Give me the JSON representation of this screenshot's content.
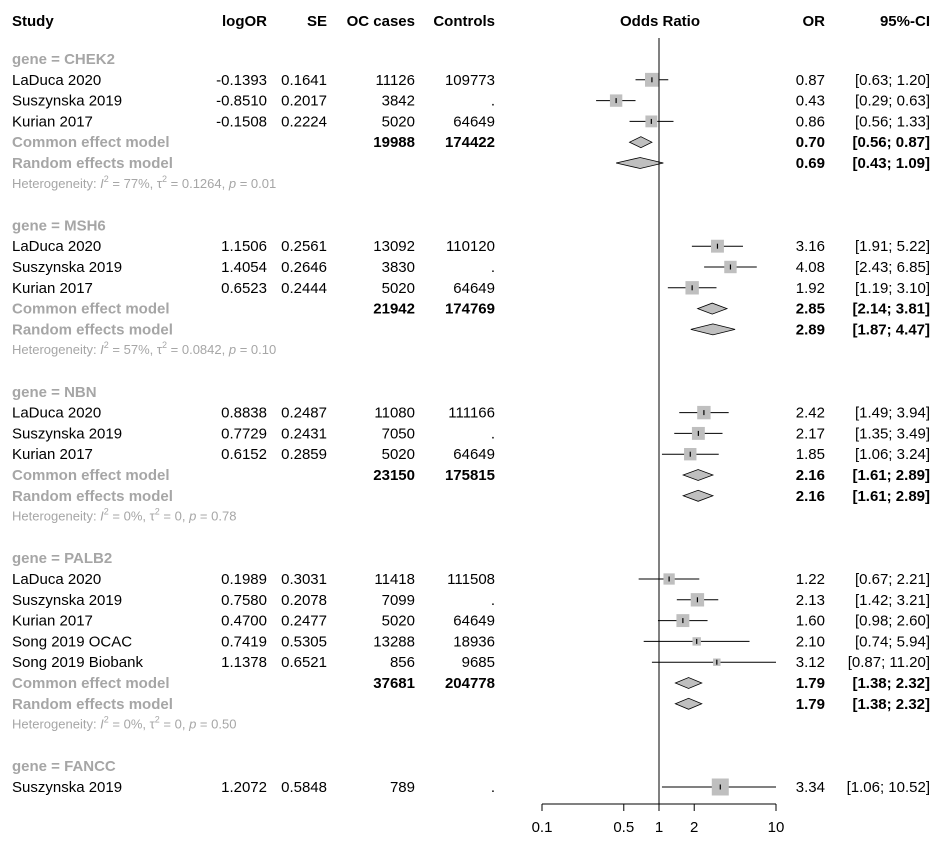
{
  "chart_data": {
    "type": "forest",
    "title": "",
    "axis": {
      "label": "Odds Ratio",
      "scale": "log",
      "ticks": [
        "0.1",
        "0.5",
        "1",
        "2",
        "10"
      ],
      "range": [
        0.1,
        10
      ],
      "reference_line": 1
    },
    "columns": {
      "study": "Study",
      "logor": "logOR",
      "se": "SE",
      "cases": "OC cases",
      "controls": "Controls",
      "plot": "Odds Ratio",
      "or": "OR",
      "ci": "95%-CI"
    },
    "groups": [
      {
        "label": "gene = CHEK2",
        "studies": [
          {
            "study": "LaDuca 2020",
            "logor": "-0.1393",
            "se": "0.1641",
            "cases": "11126",
            "controls": "109773",
            "or": 0.87,
            "lo": 0.63,
            "hi": 1.2,
            "or_text": "0.87",
            "ci_text": "[0.63; 1.20]",
            "weight": 0.6
          },
          {
            "study": "Suszynska 2019",
            "logor": "-0.8510",
            "se": "0.2017",
            "cases": "3842",
            "controls": ".",
            "or": 0.43,
            "lo": 0.29,
            "hi": 0.63,
            "or_text": "0.43",
            "ci_text": "[0.29; 0.63]",
            "weight": 0.45
          },
          {
            "study": "Kurian 2017",
            "logor": "-0.1508",
            "se": "0.2224",
            "cases": "5020",
            "controls": "64649",
            "or": 0.86,
            "lo": 0.56,
            "hi": 1.33,
            "or_text": "0.86",
            "ci_text": "[0.56; 1.33]",
            "weight": 0.4
          }
        ],
        "common": {
          "label": "Common effect model",
          "cases": "19988",
          "controls": "174422",
          "or": 0.7,
          "lo": 0.56,
          "hi": 0.87,
          "or_text": "0.70",
          "ci_text": "[0.56; 0.87]"
        },
        "random": {
          "label": "Random effects model",
          "or": 0.69,
          "lo": 0.43,
          "hi": 1.09,
          "or_text": "0.69",
          "ci_text": "[0.43; 1.09]"
        },
        "heterogeneity": {
          "prefix": "Heterogeneity: ",
          "i2_symbol": "I",
          "i2_sup": "2",
          "i2_value": " = 77%, ",
          "tau_symbol": "τ",
          "tau_sup": "2",
          "tau_value": " = 0.1264, ",
          "p_symbol": "p",
          "p_value": " = 0.01"
        }
      },
      {
        "label": "gene = MSH6",
        "studies": [
          {
            "study": "LaDuca 2020",
            "logor": "1.1506",
            "se": "0.2561",
            "cases": "13092",
            "controls": "110120",
            "or": 3.16,
            "lo": 1.91,
            "hi": 5.22,
            "or_text": "3.16",
            "ci_text": "[1.91; 5.22]",
            "weight": 0.5
          },
          {
            "study": "Suszynska 2019",
            "logor": "1.4054",
            "se": "0.2646",
            "cases": "3830",
            "controls": ".",
            "or": 4.08,
            "lo": 2.43,
            "hi": 6.85,
            "or_text": "4.08",
            "ci_text": "[2.43; 6.85]",
            "weight": 0.45
          },
          {
            "study": "Kurian 2017",
            "logor": "0.6523",
            "se": "0.2444",
            "cases": "5020",
            "controls": "64649",
            "or": 1.92,
            "lo": 1.19,
            "hi": 3.1,
            "or_text": "1.92",
            "ci_text": "[1.19; 3.10]",
            "weight": 0.55
          }
        ],
        "common": {
          "label": "Common effect model",
          "cases": "21942",
          "controls": "174769",
          "or": 2.85,
          "lo": 2.14,
          "hi": 3.81,
          "or_text": "2.85",
          "ci_text": "[2.14; 3.81]"
        },
        "random": {
          "label": "Random effects model",
          "or": 2.89,
          "lo": 1.87,
          "hi": 4.47,
          "or_text": "2.89",
          "ci_text": "[1.87; 4.47]"
        },
        "heterogeneity": {
          "prefix": "Heterogeneity: ",
          "i2_symbol": "I",
          "i2_sup": "2",
          "i2_value": " = 57%, ",
          "tau_symbol": "τ",
          "tau_sup": "2",
          "tau_value": " = 0.0842, ",
          "p_symbol": "p",
          "p_value": " = 0.10"
        }
      },
      {
        "label": "gene = NBN",
        "studies": [
          {
            "study": "LaDuca 2020",
            "logor": "0.8838",
            "se": "0.2487",
            "cases": "11080",
            "controls": "111166",
            "or": 2.42,
            "lo": 1.49,
            "hi": 3.94,
            "or_text": "2.42",
            "ci_text": "[1.49; 3.94]",
            "weight": 0.55
          },
          {
            "study": "Suszynska 2019",
            "logor": "0.7729",
            "se": "0.2431",
            "cases": "7050",
            "controls": ".",
            "or": 2.17,
            "lo": 1.35,
            "hi": 3.49,
            "or_text": "2.17",
            "ci_text": "[1.35; 3.49]",
            "weight": 0.5
          },
          {
            "study": "Kurian 2017",
            "logor": "0.6152",
            "se": "0.2859",
            "cases": "5020",
            "controls": "64649",
            "or": 1.85,
            "lo": 1.06,
            "hi": 3.24,
            "or_text": "1.85",
            "ci_text": "[1.06; 3.24]",
            "weight": 0.45
          }
        ],
        "common": {
          "label": "Common effect model",
          "cases": "23150",
          "controls": "175815",
          "or": 2.16,
          "lo": 1.61,
          "hi": 2.89,
          "or_text": "2.16",
          "ci_text": "[1.61; 2.89]"
        },
        "random": {
          "label": "Random effects model",
          "or": 2.16,
          "lo": 1.61,
          "hi": 2.89,
          "or_text": "2.16",
          "ci_text": "[1.61; 2.89]"
        },
        "heterogeneity": {
          "prefix": "Heterogeneity: ",
          "i2_symbol": "I",
          "i2_sup": "2",
          "i2_value": " = 0%, ",
          "tau_symbol": "τ",
          "tau_sup": "2",
          "tau_value": " = 0, ",
          "p_symbol": "p",
          "p_value": " = 0.78"
        }
      },
      {
        "label": "gene = PALB2",
        "studies": [
          {
            "study": "LaDuca 2020",
            "logor": "0.1989",
            "se": "0.3031",
            "cases": "11418",
            "controls": "111508",
            "or": 1.22,
            "lo": 0.67,
            "hi": 2.21,
            "or_text": "1.22",
            "ci_text": "[0.67; 2.21]",
            "weight": 0.35
          },
          {
            "study": "Suszynska 2019",
            "logor": "0.7580",
            "se": "0.2078",
            "cases": "7099",
            "controls": ".",
            "or": 2.13,
            "lo": 1.42,
            "hi": 3.21,
            "or_text": "2.13",
            "ci_text": "[1.42; 3.21]",
            "weight": 0.55
          },
          {
            "study": "Kurian 2017",
            "logor": "0.4700",
            "se": "0.2477",
            "cases": "5020",
            "controls": "64649",
            "or": 1.6,
            "lo": 0.98,
            "hi": 2.6,
            "or_text": "1.60",
            "ci_text": "[0.98; 2.60]",
            "weight": 0.5
          },
          {
            "study": "Song 2019 OCAC",
            "logor": "0.7419",
            "se": "0.5305",
            "cases": "13288",
            "controls": "18936",
            "or": 2.1,
            "lo": 0.74,
            "hi": 5.94,
            "or_text": "2.10",
            "ci_text": "[0.74; 5.94]",
            "weight": 0.15
          },
          {
            "study": "Song 2019 Biobank",
            "logor": "1.1378",
            "se": "0.6521",
            "cases": "856",
            "controls": "9685",
            "or": 3.12,
            "lo": 0.87,
            "hi": 11.2,
            "or_text": "3.12",
            "ci_text": "[0.87; 11.20]",
            "weight": 0.1
          }
        ],
        "common": {
          "label": "Common effect model",
          "cases": "37681",
          "controls": "204778",
          "or": 1.79,
          "lo": 1.38,
          "hi": 2.32,
          "or_text": "1.79",
          "ci_text": "[1.38; 2.32]"
        },
        "random": {
          "label": "Random effects model",
          "or": 1.79,
          "lo": 1.38,
          "hi": 2.32,
          "or_text": "1.79",
          "ci_text": "[1.38; 2.32]"
        },
        "heterogeneity": {
          "prefix": "Heterogeneity: ",
          "i2_symbol": "I",
          "i2_sup": "2",
          "i2_value": " = 0%, ",
          "tau_symbol": "τ",
          "tau_sup": "2",
          "tau_value": " = 0, ",
          "p_symbol": "p",
          "p_value": " = 0.50"
        }
      },
      {
        "label": "gene = FANCC",
        "studies": [
          {
            "study": "Suszynska 2019",
            "logor": "1.2072",
            "se": "0.5848",
            "cases": "789",
            "controls": ".",
            "or": 3.34,
            "lo": 1.06,
            "hi": 10.52,
            "or_text": "3.34",
            "ci_text": "[1.06; 10.52]",
            "weight": 1.0
          }
        ]
      }
    ],
    "colors": {
      "text": "#000000",
      "subgroup_text": "#a6a6a6",
      "square": "#bfbfbf",
      "diamond": "#bfbfbf",
      "line": "#000000"
    }
  }
}
